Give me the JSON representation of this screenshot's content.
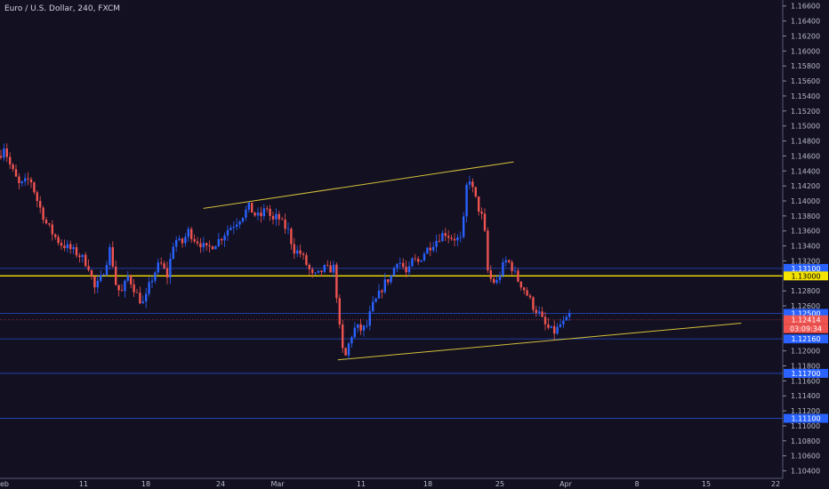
{
  "chart_data": {
    "type": "candlestick",
    "title": "Euro / U.S. Dollar, 240, FXCM",
    "ylim": [
      1.103,
      1.1668
    ],
    "y_ticks": [
      "1.16600",
      "1.16400",
      "1.16200",
      "1.16000",
      "1.15800",
      "1.15600",
      "1.15400",
      "1.15200",
      "1.15000",
      "1.14800",
      "1.14600",
      "1.14400",
      "1.14200",
      "1.14000",
      "1.13800",
      "1.13600",
      "1.13400",
      "1.13200",
      "1.12800",
      "1.12600",
      "1.12000",
      "1.11800",
      "1.11600",
      "1.11400",
      "1.11200",
      "1.11000",
      "1.10800",
      "1.10600",
      "1.10400"
    ],
    "x_ticks": [
      "eb",
      "11",
      "18",
      "24",
      "Mar",
      "11",
      "18",
      "25",
      "Apr",
      "8",
      "15",
      "22"
    ],
    "horizontal_levels": [
      {
        "value": 1.131,
        "label": "1.13100",
        "kind": "support-resistance",
        "color": "#2962ff"
      },
      {
        "value": 1.13,
        "label": "1.13000",
        "kind": "key-level",
        "color": "#f5e400"
      },
      {
        "value": 1.125,
        "label": "1.12500",
        "kind": "support-resistance",
        "color": "#2962ff"
      },
      {
        "value": 1.12414,
        "label": "1.12414",
        "kind": "last-price",
        "color": "#ef5350",
        "countdown": "03:09:34"
      },
      {
        "value": 1.1216,
        "label": "1.12160",
        "kind": "support-resistance",
        "color": "#2962ff"
      },
      {
        "value": 1.117,
        "label": "1.11700",
        "kind": "support-resistance",
        "color": "#2962ff"
      },
      {
        "value": 1.111,
        "label": "1.11100",
        "kind": "support-resistance",
        "color": "#2962ff"
      }
    ],
    "trendlines": [
      {
        "color": "#d4c13a",
        "from": [
          "2019-02-24",
          1.139
        ],
        "to": [
          "2019-03-26",
          1.1452
        ]
      },
      {
        "color": "#d4c13a",
        "from": [
          "2019-03-09",
          1.1188
        ],
        "to": [
          "2019-04-17",
          1.1237
        ]
      }
    ],
    "up_color": "#2962ff",
    "down_color": "#ef5350",
    "series_path": [
      [
        0,
        1.146
      ],
      [
        4,
        1.1475
      ],
      [
        12,
        1.1445
      ],
      [
        22,
        1.142
      ],
      [
        34,
        1.143
      ],
      [
        42,
        1.14
      ],
      [
        52,
        1.137
      ],
      [
        60,
        1.1355
      ],
      [
        68,
        1.1343
      ],
      [
        76,
        1.1338
      ],
      [
        84,
        1.1332
      ],
      [
        92,
        1.1325
      ],
      [
        100,
        1.1312
      ],
      [
        106,
        1.1283
      ],
      [
        112,
        1.1292
      ],
      [
        118,
        1.1312
      ],
      [
        124,
        1.1338
      ],
      [
        130,
        1.129
      ],
      [
        136,
        1.1275
      ],
      [
        144,
        1.13
      ],
      [
        150,
        1.1285
      ],
      [
        156,
        1.127
      ],
      [
        162,
        1.1262
      ],
      [
        168,
        1.1288
      ],
      [
        174,
        1.1305
      ],
      [
        180,
        1.1318
      ],
      [
        188,
        1.13
      ],
      [
        196,
        1.135
      ],
      [
        204,
        1.1342
      ],
      [
        212,
        1.136
      ],
      [
        218,
        1.135
      ],
      [
        224,
        1.1345
      ],
      [
        232,
        1.1335
      ],
      [
        240,
        1.1342
      ],
      [
        248,
        1.135
      ],
      [
        256,
        1.1362
      ],
      [
        264,
        1.137
      ],
      [
        272,
        1.138
      ],
      [
        280,
        1.1392
      ],
      [
        286,
        1.1382
      ],
      [
        292,
        1.1378
      ],
      [
        300,
        1.1392
      ],
      [
        306,
        1.1372
      ],
      [
        312,
        1.138
      ],
      [
        318,
        1.1368
      ],
      [
        324,
        1.136
      ],
      [
        330,
        1.1335
      ],
      [
        338,
        1.133
      ],
      [
        346,
        1.1312
      ],
      [
        352,
        1.1298
      ],
      [
        358,
        1.1302
      ],
      [
        364,
        1.131
      ],
      [
        370,
        1.1308
      ],
      [
        376,
        1.1312
      ],
      [
        380,
        1.125
      ],
      [
        384,
        1.1205
      ],
      [
        388,
        1.119
      ],
      [
        394,
        1.1218
      ],
      [
        400,
        1.1232
      ],
      [
        406,
        1.1228
      ],
      [
        412,
        1.1232
      ],
      [
        418,
        1.1258
      ],
      [
        424,
        1.127
      ],
      [
        432,
        1.129
      ],
      [
        440,
        1.13
      ],
      [
        446,
        1.1322
      ],
      [
        452,
        1.1315
      ],
      [
        458,
        1.13
      ],
      [
        464,
        1.1322
      ],
      [
        470,
        1.1318
      ],
      [
        476,
        1.133
      ],
      [
        482,
        1.1338
      ],
      [
        488,
        1.1345
      ],
      [
        494,
        1.1352
      ],
      [
        500,
        1.1358
      ],
      [
        506,
        1.1352
      ],
      [
        512,
        1.135
      ],
      [
        518,
        1.1348
      ],
      [
        522,
        1.138
      ],
      [
        526,
        1.144
      ],
      [
        530,
        1.142
      ],
      [
        534,
        1.1405
      ],
      [
        538,
        1.139
      ],
      [
        544,
        1.1372
      ],
      [
        548,
        1.1308
      ],
      [
        552,
        1.1295
      ],
      [
        558,
        1.129
      ],
      [
        564,
        1.131
      ],
      [
        570,
        1.1322
      ],
      [
        576,
        1.131
      ],
      [
        582,
        1.1295
      ],
      [
        588,
        1.1285
      ],
      [
        594,
        1.1272
      ],
      [
        600,
        1.1258
      ],
      [
        606,
        1.125
      ],
      [
        612,
        1.1235
      ],
      [
        618,
        1.1228
      ],
      [
        624,
        1.1225
      ],
      [
        630,
        1.1235
      ],
      [
        636,
        1.1238
      ],
      [
        640,
        1.1248
      ],
      [
        643,
        1.12414
      ]
    ]
  }
}
